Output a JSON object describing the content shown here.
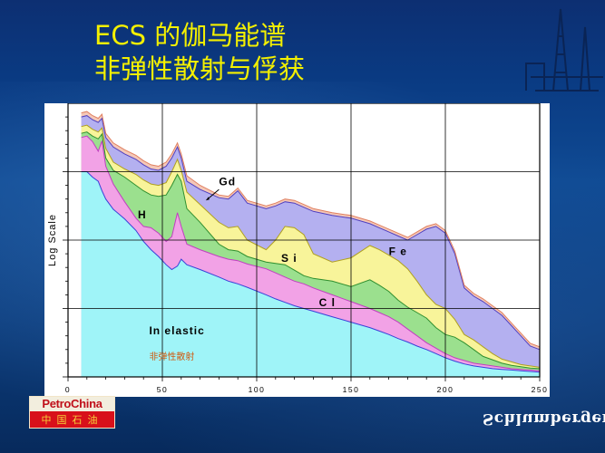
{
  "slide": {
    "title_line1": "ECS 的伽马能谱",
    "title_line2": "非弹性散射与俘获",
    "logo_top": "PetroChina",
    "logo_bottom": "中国石油",
    "brand": "Schlumberger",
    "colors": {
      "title": "#f4f000",
      "inelastic": "#9ff4f8",
      "H": "#f2a2e6",
      "Cl": "#9be08e",
      "Si": "#f8f49a",
      "Fe": "#b4b0f0",
      "Gd": "#f4c8b8"
    }
  },
  "chart_data": {
    "type": "area",
    "ylabel": "Log Scale",
    "xlabel": "",
    "xlim": [
      0,
      250
    ],
    "x_ticks": [
      "0",
      "50",
      "100",
      "150",
      "200",
      "250"
    ],
    "ylim": [
      0,
      4
    ],
    "grid": true,
    "annotations": [
      "Gd",
      "H",
      "S i",
      "F e",
      "C l",
      "In elastic",
      "非弹性散射"
    ],
    "x": [
      7,
      10,
      13,
      16,
      18,
      20,
      24,
      30,
      36,
      40,
      44,
      48,
      52,
      55,
      58,
      60,
      63,
      70,
      80,
      85,
      90,
      95,
      105,
      110,
      115,
      120,
      125,
      130,
      140,
      150,
      160,
      165,
      170,
      175,
      180,
      185,
      190,
      195,
      200,
      205,
      210,
      215,
      220,
      225,
      230,
      235,
      240,
      245,
      250
    ],
    "series": [
      {
        "name": "Inelastic",
        "values": [
          3.0,
          3.0,
          2.92,
          2.86,
          2.72,
          2.6,
          2.45,
          2.31,
          2.14,
          1.98,
          1.86,
          1.76,
          1.64,
          1.57,
          1.62,
          1.72,
          1.64,
          1.57,
          1.46,
          1.4,
          1.36,
          1.31,
          1.2,
          1.14,
          1.09,
          1.04,
          1.0,
          0.96,
          0.88,
          0.8,
          0.72,
          0.67,
          0.62,
          0.56,
          0.51,
          0.45,
          0.4,
          0.34,
          0.28,
          0.23,
          0.19,
          0.16,
          0.14,
          0.12,
          0.11,
          0.1,
          0.09,
          0.08,
          0.07
        ]
      },
      {
        "name": "H",
        "values": [
          3.5,
          3.52,
          3.44,
          3.3,
          3.45,
          3.08,
          2.82,
          2.56,
          2.32,
          2.2,
          2.18,
          2.1,
          1.98,
          2.05,
          2.4,
          2.2,
          1.94,
          1.86,
          1.76,
          1.72,
          1.7,
          1.65,
          1.58,
          1.52,
          1.46,
          1.4,
          1.36,
          1.3,
          1.2,
          1.1,
          1.0,
          0.94,
          0.88,
          0.8,
          0.7,
          0.6,
          0.5,
          0.42,
          0.34,
          0.28,
          0.24,
          0.2,
          0.18,
          0.16,
          0.14,
          0.12,
          0.11,
          0.1,
          0.09
        ]
      },
      {
        "name": "Cl",
        "values": [
          3.56,
          3.58,
          3.52,
          3.48,
          3.55,
          3.2,
          3.02,
          2.92,
          2.8,
          2.72,
          2.66,
          2.64,
          2.66,
          2.8,
          2.96,
          2.86,
          2.46,
          2.26,
          1.94,
          1.86,
          1.84,
          1.76,
          1.68,
          1.66,
          1.64,
          1.56,
          1.48,
          1.44,
          1.4,
          1.32,
          1.42,
          1.34,
          1.25,
          1.12,
          1.02,
          0.94,
          0.86,
          0.72,
          0.62,
          0.58,
          0.5,
          0.4,
          0.3,
          0.25,
          0.2,
          0.17,
          0.15,
          0.13,
          0.12
        ]
      },
      {
        "name": "Si",
        "values": [
          3.66,
          3.68,
          3.62,
          3.58,
          3.64,
          3.34,
          3.14,
          3.04,
          2.96,
          2.88,
          2.82,
          2.8,
          2.84,
          3.0,
          3.18,
          3.02,
          2.7,
          2.52,
          2.26,
          2.18,
          2.2,
          2.0,
          1.86,
          2.0,
          2.2,
          2.18,
          2.08,
          1.8,
          1.68,
          1.74,
          1.92,
          1.86,
          1.78,
          1.7,
          1.58,
          1.4,
          1.2,
          1.06,
          1.0,
          0.84,
          0.62,
          0.54,
          0.44,
          0.34,
          0.26,
          0.22,
          0.18,
          0.16,
          0.14
        ]
      },
      {
        "name": "Fe",
        "values": [
          3.8,
          3.82,
          3.76,
          3.72,
          3.78,
          3.5,
          3.36,
          3.26,
          3.18,
          3.1,
          3.04,
          3.02,
          3.08,
          3.2,
          3.36,
          3.2,
          2.86,
          2.74,
          2.62,
          2.6,
          2.72,
          2.54,
          2.46,
          2.5,
          2.56,
          2.54,
          2.48,
          2.42,
          2.36,
          2.32,
          2.24,
          2.18,
          2.12,
          2.06,
          2.0,
          2.08,
          2.16,
          2.2,
          2.1,
          1.8,
          1.3,
          1.18,
          1.1,
          1.0,
          0.9,
          0.75,
          0.6,
          0.45,
          0.4
        ]
      },
      {
        "name": "Gd",
        "values": [
          3.86,
          3.88,
          3.82,
          3.78,
          3.84,
          3.56,
          3.42,
          3.32,
          3.24,
          3.16,
          3.1,
          3.08,
          3.14,
          3.26,
          3.42,
          3.26,
          2.94,
          2.8,
          2.66,
          2.64,
          2.76,
          2.58,
          2.5,
          2.54,
          2.6,
          2.58,
          2.52,
          2.46,
          2.4,
          2.36,
          2.28,
          2.22,
          2.16,
          2.1,
          2.04,
          2.12,
          2.2,
          2.24,
          2.14,
          1.84,
          1.34,
          1.22,
          1.14,
          1.04,
          0.94,
          0.79,
          0.64,
          0.49,
          0.44
        ]
      }
    ]
  }
}
